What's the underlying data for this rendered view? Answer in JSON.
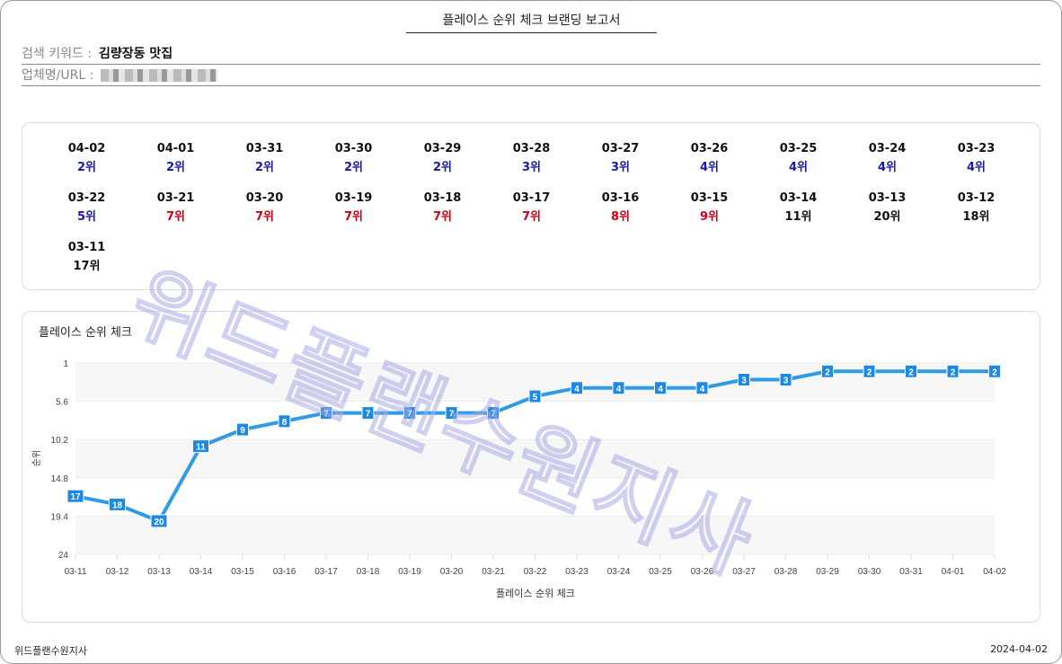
{
  "report_title": "플레이스 순위 체크 브랜딩 보고서",
  "keyword_label": "검색 키워드 :",
  "keyword_value": "김량장동 맛집",
  "company_label": "업체명/URL :",
  "ranks": [
    {
      "date": "04-02",
      "rank": "2위"
    },
    {
      "date": "04-01",
      "rank": "2위"
    },
    {
      "date": "03-31",
      "rank": "2위"
    },
    {
      "date": "03-30",
      "rank": "2위"
    },
    {
      "date": "03-29",
      "rank": "2위"
    },
    {
      "date": "03-28",
      "rank": "3위"
    },
    {
      "date": "03-27",
      "rank": "3위"
    },
    {
      "date": "03-26",
      "rank": "4위"
    },
    {
      "date": "03-25",
      "rank": "4위"
    },
    {
      "date": "03-24",
      "rank": "4위"
    },
    {
      "date": "03-23",
      "rank": "4위"
    },
    {
      "date": "03-22",
      "rank": "5위"
    },
    {
      "date": "03-21",
      "rank": "7위"
    },
    {
      "date": "03-20",
      "rank": "7위"
    },
    {
      "date": "03-19",
      "rank": "7위"
    },
    {
      "date": "03-18",
      "rank": "7위"
    },
    {
      "date": "03-17",
      "rank": "7위"
    },
    {
      "date": "03-16",
      "rank": "8위"
    },
    {
      "date": "03-15",
      "rank": "9위"
    },
    {
      "date": "03-14",
      "rank": "11위"
    },
    {
      "date": "03-13",
      "rank": "20위"
    },
    {
      "date": "03-12",
      "rank": "18위"
    },
    {
      "date": "03-11",
      "rank": "17위"
    }
  ],
  "colors": {
    "top5": "#1a1aa6",
    "top10": "#d0021b",
    "other": "#111111",
    "line": "#2f9be8"
  },
  "chart_title": "플레이스 순위 체크",
  "chart_data": {
    "type": "line",
    "x": [
      "03-11",
      "03-12",
      "03-13",
      "03-14",
      "03-15",
      "03-16",
      "03-17",
      "03-18",
      "03-19",
      "03-20",
      "03-21",
      "03-22",
      "03-23",
      "03-24",
      "03-25",
      "03-26",
      "03-27",
      "03-28",
      "03-29",
      "03-30",
      "03-31",
      "04-01",
      "04-02"
    ],
    "values": [
      17,
      18,
      20,
      11,
      9,
      8,
      7,
      7,
      7,
      7,
      7,
      5,
      4,
      4,
      4,
      4,
      3,
      3,
      2,
      2,
      2,
      2,
      2
    ],
    "ylabel": "순위",
    "xlabel": "플레이스 순위 체크",
    "ylim": [
      1,
      24
    ],
    "y_reversed": true,
    "yticks": [
      "1",
      "5.6",
      "10.2",
      "14.8",
      "19.4",
      "24"
    ],
    "data_labels": true,
    "grid": "alternating bands"
  },
  "watermark": "위드플랜수원지사",
  "footer_left": "위드플랜수원지사",
  "footer_right": "2024-04-02"
}
